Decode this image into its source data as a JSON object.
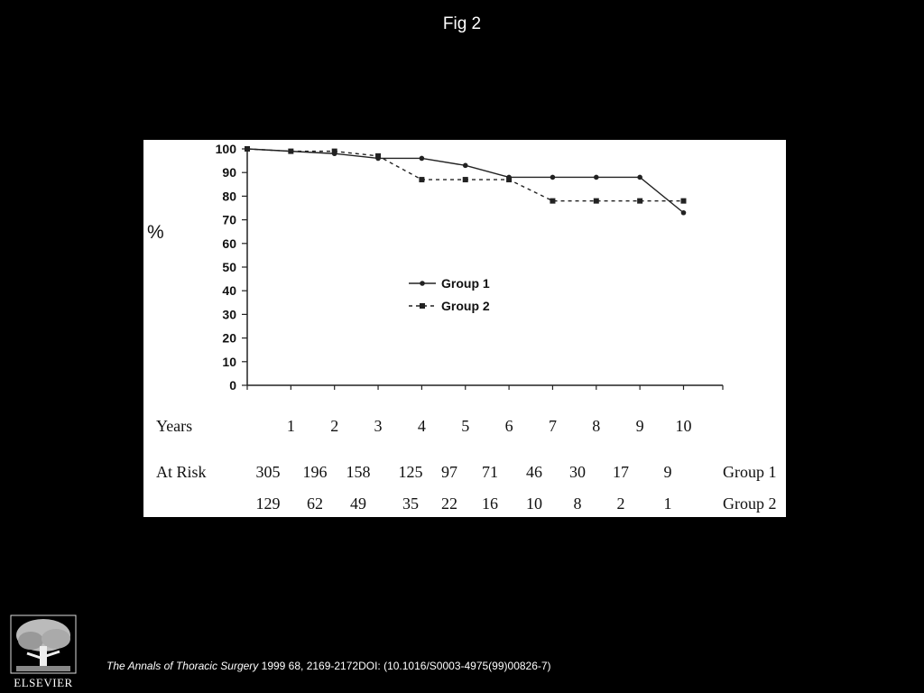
{
  "figure": {
    "title": "Fig 2"
  },
  "footer": {
    "journal": "The Annals of Thoracic Surgery",
    "citation": " 1999 68, 2169-2172DOI: (10.1016/S0003-4975(99)00826-7)"
  },
  "publisher": {
    "name": "ELSEVIER",
    "logo_icon": "elsevier-tree-icon"
  },
  "chart_data": {
    "type": "line",
    "title": "",
    "xlabel": "Years",
    "ylabel": "%",
    "x": [
      0,
      1,
      2,
      3,
      4,
      5,
      6,
      7,
      8,
      9,
      10
    ],
    "x_tick_labels": [
      "1",
      "2",
      "3",
      "4",
      "5",
      "6",
      "7",
      "8",
      "9",
      "10"
    ],
    "y_ticks": [
      0,
      10,
      20,
      30,
      40,
      50,
      60,
      70,
      80,
      90,
      100
    ],
    "ylim": [
      0,
      100
    ],
    "xlim": [
      0,
      10.9
    ],
    "grid": false,
    "legend_position": "center",
    "series": [
      {
        "name": "Group 1",
        "style": "solid",
        "values": [
          100,
          99,
          98,
          96,
          96,
          93,
          88,
          88,
          88,
          88,
          73
        ]
      },
      {
        "name": "Group 2",
        "style": "dashed",
        "values": [
          100,
          99,
          99,
          97,
          87,
          87,
          87,
          78,
          78,
          78,
          78
        ]
      }
    ],
    "at_risk": {
      "label": "At Risk",
      "rows": [
        {
          "group": "Group 1",
          "values": [
            "305",
            "196",
            "158",
            "125",
            "97",
            "71",
            "46",
            "30",
            "17",
            "9"
          ]
        },
        {
          "group": "Group 2",
          "values": [
            "129",
            "62",
            "49",
            "35",
            "22",
            "16",
            "10",
            "8",
            "2",
            "1"
          ]
        }
      ]
    }
  }
}
